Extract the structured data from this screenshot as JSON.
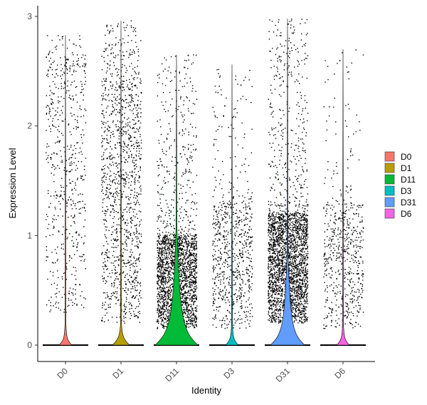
{
  "chart_data": {
    "type": "violin",
    "title": "",
    "xlabel": "Identity",
    "ylabel": "Expression Level",
    "ylim": [
      -0.15,
      3.05
    ],
    "yticks": [
      0,
      1,
      2,
      3
    ],
    "grid": false,
    "legend_position": "right",
    "categories": [
      "D0",
      "D1",
      "D11",
      "D3",
      "D31",
      "D6"
    ],
    "series": [
      {
        "name": "D0",
        "color": "#F8766D",
        "max": 2.83,
        "point_count": 600,
        "expr_low": 0.3,
        "expr_high": 2.5,
        "zero_fraction": 0.97
      },
      {
        "name": "D1",
        "color": "#B79F00",
        "max": 2.96,
        "point_count": 1300,
        "expr_low": 0.2,
        "expr_high": 2.35,
        "zero_fraction": 0.96
      },
      {
        "name": "D11",
        "color": "#00BA38",
        "max": 2.65,
        "point_count": 2300,
        "expr_low": 0.15,
        "expr_high": 1.0,
        "zero_fraction": 0.9
      },
      {
        "name": "D3",
        "color": "#00BFC4",
        "max": 2.56,
        "point_count": 750,
        "expr_low": 0.15,
        "expr_high": 1.3,
        "zero_fraction": 0.97
      },
      {
        "name": "D31",
        "color": "#619CFF",
        "max": 2.98,
        "point_count": 2800,
        "expr_low": 0.2,
        "expr_high": 1.2,
        "zero_fraction": 0.92
      },
      {
        "name": "D6",
        "color": "#F564E3",
        "max": 2.7,
        "point_count": 600,
        "expr_low": 0.15,
        "expr_high": 1.3,
        "zero_fraction": 0.97
      }
    ],
    "legend": {
      "title": "",
      "entries": [
        "D0",
        "D1",
        "D11",
        "D3",
        "D31",
        "D6"
      ]
    }
  }
}
